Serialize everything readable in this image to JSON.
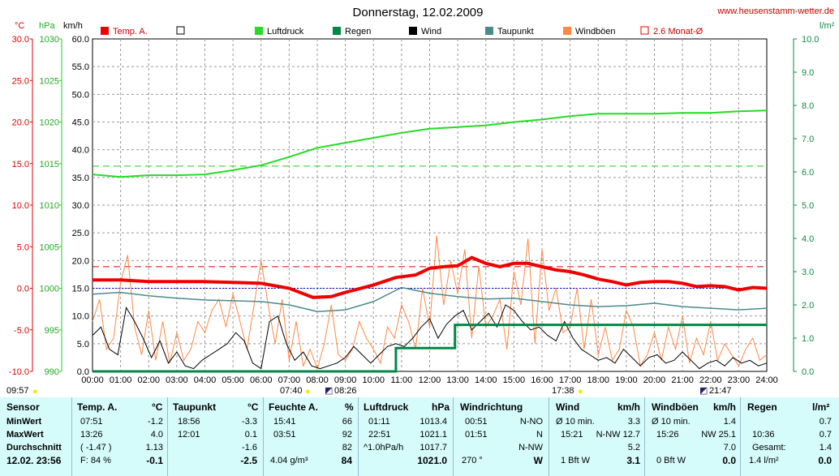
{
  "chart_data": {
    "type": "line",
    "title": "Donnerstag, 12.02.2009",
    "source": "www.heusenstamm-wetter.de",
    "unit_labels": [
      "°C",
      "hPa",
      "km/h",
      "l/m²"
    ],
    "legend": [
      {
        "label": "Temp. A.",
        "color": "#ee0000",
        "style": "solid-box"
      },
      {
        "label": "",
        "color": "#000000",
        "style": "hollow-box"
      },
      {
        "label": "Luftdruck",
        "color": "#22dd22",
        "style": "solid-box"
      },
      {
        "label": "Regen",
        "color": "#008844",
        "style": "solid-box"
      },
      {
        "label": "Wind",
        "color": "#000000",
        "style": "solid-box"
      },
      {
        "label": "Taupunkt",
        "color": "#4a8a8a",
        "style": "solid-box"
      },
      {
        "label": "Windböen",
        "color": "#ff8844",
        "style": "solid-box"
      },
      {
        "label": "2.6 Monat-Ø",
        "color": "#ee0000",
        "style": "hollow-box"
      }
    ],
    "x_ticks": [
      "00:00",
      "01:00",
      "02:00",
      "03:00",
      "04:00",
      "05:00",
      "06:00",
      "07:00",
      "08:00",
      "09:00",
      "10:00",
      "11:00",
      "12:00",
      "13:00",
      "14:00",
      "15:00",
      "16:00",
      "17:00",
      "18:00",
      "19:00",
      "20:00",
      "21:00",
      "22:00",
      "23:00",
      "24:00"
    ],
    "y_temp_ticks": [
      "-10.0",
      "-5.0",
      "0.0",
      "5.0",
      "10.0",
      "15.0",
      "20.0",
      "25.0",
      "30.0"
    ],
    "y_pressure_ticks": [
      "990",
      "995",
      "1000",
      "1005",
      "1010",
      "1015",
      "1020",
      "1025",
      "1030"
    ],
    "y_wind_ticks": [
      "0.0",
      "5.0",
      "10.0",
      "15.0",
      "20.0",
      "25.0",
      "30.0",
      "35.0",
      "40.0",
      "45.0",
      "50.0",
      "55.0",
      "60.0"
    ],
    "y_rain_ticks": [
      "0.0",
      "1.0",
      "2.0",
      "3.0",
      "4.0",
      "5.0",
      "6.0",
      "7.0",
      "8.0",
      "9.0",
      "10.0"
    ],
    "temp_range": [
      -10,
      30
    ],
    "pressure_range": [
      990,
      1030
    ],
    "wind_range": [
      0,
      60
    ],
    "rain_range": [
      0,
      10
    ],
    "temp_month_avg": 2.6,
    "pressure_avg_line": 1014.7,
    "temp_ref_line": 0.0,
    "temperature": {
      "x": [
        0,
        1,
        2,
        3,
        4,
        5,
        6,
        7,
        7.85,
        8.5,
        9,
        10,
        10.8,
        11.5,
        12,
        12.5,
        13,
        13.5,
        14,
        14.5,
        15,
        15.5,
        16,
        16.5,
        17,
        17.5,
        18,
        18.5,
        19,
        19.5,
        20,
        20.5,
        21,
        21.5,
        22,
        22.5,
        23,
        23.5,
        24
      ],
      "y": [
        1.0,
        1.0,
        0.8,
        0.8,
        0.8,
        0.7,
        0.6,
        0.0,
        -1.1,
        -1.0,
        -0.5,
        0.4,
        1.3,
        1.6,
        2.4,
        2.6,
        2.7,
        3.7,
        3.0,
        2.6,
        3.0,
        3.0,
        2.6,
        2.2,
        2.0,
        1.6,
        1.1,
        0.8,
        0.4,
        0.7,
        0.8,
        0.8,
        0.6,
        0.2,
        0.3,
        0.2,
        -0.2,
        0.1,
        0.0
      ]
    },
    "dewpoint": {
      "x": [
        0,
        1,
        2,
        3,
        4,
        5,
        6,
        7,
        8,
        9,
        10,
        11,
        12,
        13,
        14,
        15,
        16,
        17,
        18,
        19,
        20,
        21,
        22,
        23,
        24
      ],
      "y": [
        -0.7,
        -0.5,
        -0.9,
        -1.2,
        -1.4,
        -1.5,
        -1.6,
        -2.0,
        -2.8,
        -2.6,
        -1.6,
        0.1,
        -0.6,
        -1.0,
        -1.3,
        -1.2,
        -1.6,
        -2.0,
        -2.2,
        -2.1,
        -1.8,
        -2.2,
        -2.4,
        -2.6,
        -2.4
      ]
    },
    "pressure": {
      "x": [
        0,
        1,
        2,
        3,
        4,
        5,
        6,
        7,
        8,
        9,
        10,
        11,
        12,
        13,
        14,
        15,
        16,
        17,
        18,
        19,
        20,
        21,
        22,
        23,
        24
      ],
      "y": [
        1013.7,
        1013.4,
        1013.6,
        1013.6,
        1013.7,
        1014.2,
        1014.8,
        1015.8,
        1016.9,
        1017.5,
        1018.1,
        1018.7,
        1019.2,
        1019.4,
        1019.6,
        1020.0,
        1020.3,
        1020.7,
        1021.0,
        1021.0,
        1021.0,
        1021.1,
        1021.1,
        1021.3,
        1021.4
      ]
    },
    "rain": {
      "x": [
        0,
        10.8,
        10.8,
        12.9,
        12.9,
        24
      ],
      "y": [
        0,
        0,
        0.7,
        0.7,
        1.4,
        1.4
      ]
    },
    "wind": {
      "x": [
        0,
        0.3,
        0.6,
        0.9,
        1.2,
        1.5,
        1.8,
        2.1,
        2.4,
        2.7,
        3.0,
        3.3,
        3.6,
        3.9,
        4.2,
        4.5,
        4.8,
        5.1,
        5.4,
        5.7,
        6.0,
        6.3,
        6.6,
        6.9,
        7.2,
        7.5,
        7.8,
        8.1,
        8.4,
        8.7,
        9.0,
        9.3,
        9.6,
        9.9,
        10.2,
        10.5,
        10.8,
        11.1,
        11.4,
        11.7,
        12.0,
        12.3,
        12.6,
        12.9,
        13.2,
        13.5,
        13.8,
        14.1,
        14.4,
        14.7,
        15.0,
        15.3,
        15.6,
        15.9,
        16.2,
        16.5,
        16.8,
        17.1,
        17.4,
        17.7,
        18.0,
        18.3,
        18.6,
        18.9,
        19.2,
        19.5,
        19.8,
        20.1,
        20.4,
        20.7,
        21.0,
        21.3,
        21.6,
        21.9,
        22.2,
        22.5,
        22.8,
        23.1,
        23.4,
        23.7,
        24.0
      ],
      "y": [
        6.5,
        8.0,
        4.0,
        3.0,
        11.5,
        9.0,
        6.0,
        2.5,
        5.5,
        1.5,
        3.5,
        1.0,
        0.5,
        2.0,
        3.0,
        4.0,
        5.0,
        7.0,
        5.5,
        1.5,
        0.5,
        9.0,
        10.0,
        5.0,
        2.0,
        3.5,
        1.0,
        0.5,
        1.0,
        1.5,
        2.5,
        4.5,
        3.0,
        1.5,
        3.0,
        4.5,
        5.0,
        4.5,
        6.0,
        8.0,
        9.5,
        6.0,
        8.5,
        10.0,
        11.0,
        7.5,
        9.0,
        10.5,
        8.0,
        12.0,
        11.0,
        9.0,
        7.5,
        8.0,
        6.5,
        5.5,
        9.0,
        6.0,
        4.0,
        3.0,
        2.0,
        2.5,
        1.5,
        4.0,
        2.5,
        1.0,
        2.5,
        3.0,
        1.5,
        2.0,
        3.5,
        2.0,
        0.5,
        1.5,
        2.0,
        1.0,
        2.5,
        1.5,
        2.0,
        1.0,
        1.5
      ]
    },
    "gusts": {
      "x": [
        0,
        0.25,
        0.5,
        0.75,
        1.0,
        1.25,
        1.5,
        1.75,
        2.0,
        2.25,
        2.5,
        2.75,
        3.0,
        3.25,
        3.5,
        3.75,
        4.0,
        4.25,
        4.5,
        4.75,
        5.0,
        5.25,
        5.5,
        5.75,
        6.0,
        6.25,
        6.5,
        6.75,
        7.0,
        7.25,
        7.5,
        7.75,
        8.0,
        8.25,
        8.5,
        8.75,
        9.0,
        9.25,
        9.5,
        9.75,
        10.0,
        10.25,
        10.5,
        10.75,
        11.0,
        11.25,
        11.5,
        11.75,
        12.0,
        12.25,
        12.5,
        12.75,
        13.0,
        13.25,
        13.5,
        13.75,
        14.0,
        14.25,
        14.5,
        14.75,
        15.0,
        15.25,
        15.5,
        15.75,
        16.0,
        16.25,
        16.5,
        16.75,
        17.0,
        17.25,
        17.5,
        17.75,
        18.0,
        18.25,
        18.5,
        18.75,
        19.0,
        19.25,
        19.5,
        19.75,
        20.0,
        20.25,
        20.5,
        20.75,
        21.0,
        21.25,
        21.5,
        21.75,
        22.0,
        22.25,
        22.5,
        22.75,
        23.0,
        23.25,
        23.5,
        23.75,
        24.0
      ],
      "y": [
        9.0,
        13.0,
        4.0,
        6.0,
        16.0,
        21.0,
        8.0,
        3.0,
        11.0,
        2.0,
        9.0,
        1.5,
        7.0,
        2.0,
        4.0,
        9.0,
        7.0,
        11.0,
        13.0,
        8.0,
        14.0,
        9.0,
        4.0,
        12.0,
        20.0,
        12.0,
        5.0,
        13.0,
        2.0,
        9.0,
        1.0,
        4.0,
        0.5,
        5.0,
        12.0,
        3.0,
        2.0,
        4.0,
        9.0,
        6.0,
        4.0,
        1.5,
        8.0,
        6.0,
        12.0,
        9.0,
        4.0,
        15.0,
        8.0,
        24.5,
        12.0,
        20.0,
        14.0,
        22.0,
        6.0,
        19.0,
        8.0,
        10.0,
        13.0,
        4.0,
        18.0,
        12.0,
        24.0,
        5.0,
        22.0,
        11.0,
        15.0,
        7.0,
        8.0,
        15.0,
        4.0,
        13.0,
        3.0,
        8.0,
        2.0,
        4.0,
        11.0,
        8.0,
        1.0,
        3.0,
        7.0,
        2.0,
        8.0,
        4.0,
        10.0,
        1.5,
        6.0,
        3.0,
        9.0,
        2.0,
        5.0,
        3.0,
        1.0,
        4.0,
        6.0,
        2.0,
        3.0
      ]
    },
    "markers": {
      "sunrise": "07:40",
      "sunset": "17:38",
      "moonrise": "08:26",
      "moonset": "21:47",
      "left_time": "09:57"
    }
  },
  "table": {
    "rows": [
      "MinWert",
      "MaxWert",
      "Durchschnitt"
    ],
    "sensor_label": "Sensor",
    "current_label": "12.02.  23:56",
    "temp": {
      "title": "Temp. A.",
      "unit": "°C",
      "min_time": "07:51",
      "min": "-1.2",
      "max_time": "13:26",
      "max": "4.0",
      "avg_note": "( -1.47 )",
      "avg": "1.13",
      "cur_note": "F: 84 %",
      "cur": "-0.1"
    },
    "dew": {
      "title": "Taupunkt",
      "unit": "°C",
      "min_time": "18:56",
      "min": "-3.3",
      "max_time": "12:01",
      "max": "0.1",
      "avg": "-1.6",
      "cur": "-2.5"
    },
    "hum": {
      "title": "Feuchte A.",
      "unit": "%",
      "min_time": "15:41",
      "min": "66",
      "max_time": "03:51",
      "max": "92",
      "avg": "82",
      "cur_note": "4.04 g/m³",
      "cur": "84"
    },
    "press": {
      "title": "Luftdruck",
      "unit": "hPa",
      "min_time": "01:11",
      "min": "1013.4",
      "max_time": "22:51",
      "max": "1021.1",
      "avg_note": "^1.0hPa/h",
      "avg": "1017.7",
      "cur": "1021.0"
    },
    "dir": {
      "title": "Windrichtung",
      "min_time": "00:51",
      "min": "N-NO",
      "max_time": "01:51",
      "max": "N",
      "avg": "N-NW",
      "cur_note": "270 °",
      "cur": "W"
    },
    "wind": {
      "title": "Wind",
      "unit": "km/h",
      "min_note": "Ø 10 min.",
      "min": "3.3",
      "max_time": "15:21",
      "max": "N-NW 12.7",
      "avg": "5.2",
      "cur_note": "1 Bft W",
      "cur": "3.1"
    },
    "gust": {
      "title": "Windböen",
      "unit": "km/h",
      "min_note": "Ø 10 min.",
      "min": "1.4",
      "max_time": "15:26",
      "max": "NW 25.1",
      "avg": "7.0",
      "cur_note": "0 Bft W",
      "cur": "0.0"
    },
    "rain": {
      "title": "Regen",
      "unit": "l/m²",
      "min": "0.7",
      "max_time": "10:36",
      "max": "0.7",
      "avg_note": "Gesamt:",
      "avg": "1.4",
      "cur": "1.4 l/m²",
      "cur_val": "0.0"
    }
  }
}
